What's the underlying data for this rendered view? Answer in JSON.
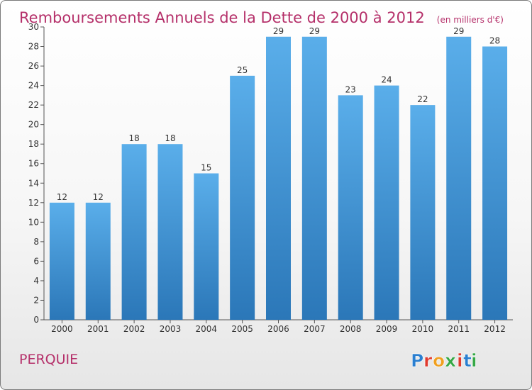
{
  "chart_data": {
    "type": "bar",
    "title": "Remboursements Annuels de la Dette de 2000 à 2012",
    "unit_note": "(en milliers d'€)",
    "categories": [
      "2000",
      "2001",
      "2002",
      "2003",
      "2004",
      "2005",
      "2006",
      "2007",
      "2008",
      "2009",
      "2010",
      "2011",
      "2012"
    ],
    "values": [
      12,
      12,
      18,
      18,
      15,
      25,
      29,
      29,
      23,
      24,
      22,
      29,
      28
    ],
    "ylim": [
      0,
      30
    ],
    "yticks": [
      0,
      2,
      4,
      6,
      8,
      10,
      12,
      14,
      16,
      18,
      20,
      22,
      24,
      26,
      28,
      30
    ],
    "grid": false,
    "data_labels": true
  },
  "location": "PERQUIE",
  "logo": {
    "text": "Proxiti",
    "letters": [
      "P",
      "r",
      "o",
      "x",
      "i",
      "t",
      "i"
    ]
  },
  "colors": {
    "title": "#b5306a",
    "bar_top": "#5aaeea",
    "bar_bottom": "#2b77b8",
    "axis": "#555555",
    "text": "#333333"
  }
}
